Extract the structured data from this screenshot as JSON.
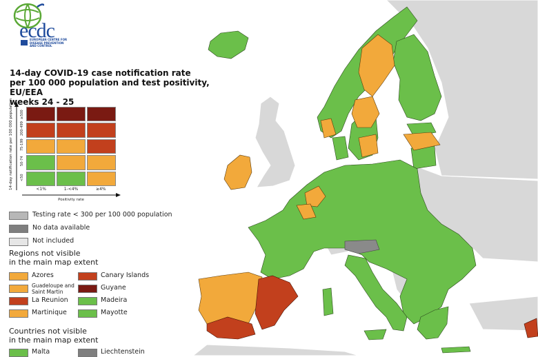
{
  "logo": {
    "wordmark": "ecdc",
    "subtitle": [
      "EUROPEAN CENTRE FOR",
      "DISEASE PREVENTION",
      "AND CONTROL"
    ]
  },
  "title": [
    "14-day COVID-19 case notification rate",
    "per 100 000 population and test positivity, EU/EEA",
    "weeks 24 - 25"
  ],
  "matrix": {
    "ylabel": "14-day notification rate per 100 000 population",
    "xlabel": "Positivity rate",
    "row_labels": [
      "≥500",
      "200-499",
      "75-199",
      "50-74",
      "<50"
    ],
    "col_labels": [
      "<1%",
      "1-<4%",
      "≥4%"
    ],
    "cell_colors": [
      [
        "#7a1a12",
        "#7a1a12",
        "#7a1a12"
      ],
      [
        "#c2401d",
        "#c2401d",
        "#c2401d"
      ],
      [
        "#f2a93b",
        "#f2a93b",
        "#c2401d"
      ],
      [
        "#6bbf4a",
        "#f2a93b",
        "#f2a93b"
      ],
      [
        "#6bbf4a",
        "#6bbf4a",
        "#f2a93b"
      ]
    ]
  },
  "status_legend": [
    {
      "label": "Testing rate < 300 per 100 000 population",
      "color": "#b7b7b7"
    },
    {
      "label": "No data available",
      "color": "#7f7f7f"
    },
    {
      "label": "Not included",
      "color": "#e6e6e6"
    }
  ],
  "regions_header": [
    "Regions not visible",
    "in the main map extent"
  ],
  "regions": [
    {
      "label": "Azores",
      "color": "#f2a93b"
    },
    {
      "label": "Canary Islands",
      "color": "#c2401d"
    },
    {
      "label": "Guadeloupe and Saint Martin",
      "color": "#f2a93b"
    },
    {
      "label": "Guyane",
      "color": "#7a1a12"
    },
    {
      "label": "La Reunion",
      "color": "#c2401d"
    },
    {
      "label": "Madeira",
      "color": "#6bbf4a"
    },
    {
      "label": "Martinique",
      "color": "#f2a93b"
    },
    {
      "label": "Mayotte",
      "color": "#6bbf4a"
    }
  ],
  "countries_header": [
    "Countries not visible",
    "in the main map extent"
  ],
  "countries": [
    {
      "label": "Malta",
      "color": "#6bbf4a"
    },
    {
      "label": "Liechtenstein",
      "color": "#7f7f7f"
    }
  ],
  "colors": {
    "green": "#6bbf4a",
    "orange": "#f2a93b",
    "red": "#c2401d",
    "darkred": "#7a1a12",
    "grey_non_eu": "#d8d8d8",
    "no_data": "#8a8a8a"
  }
}
